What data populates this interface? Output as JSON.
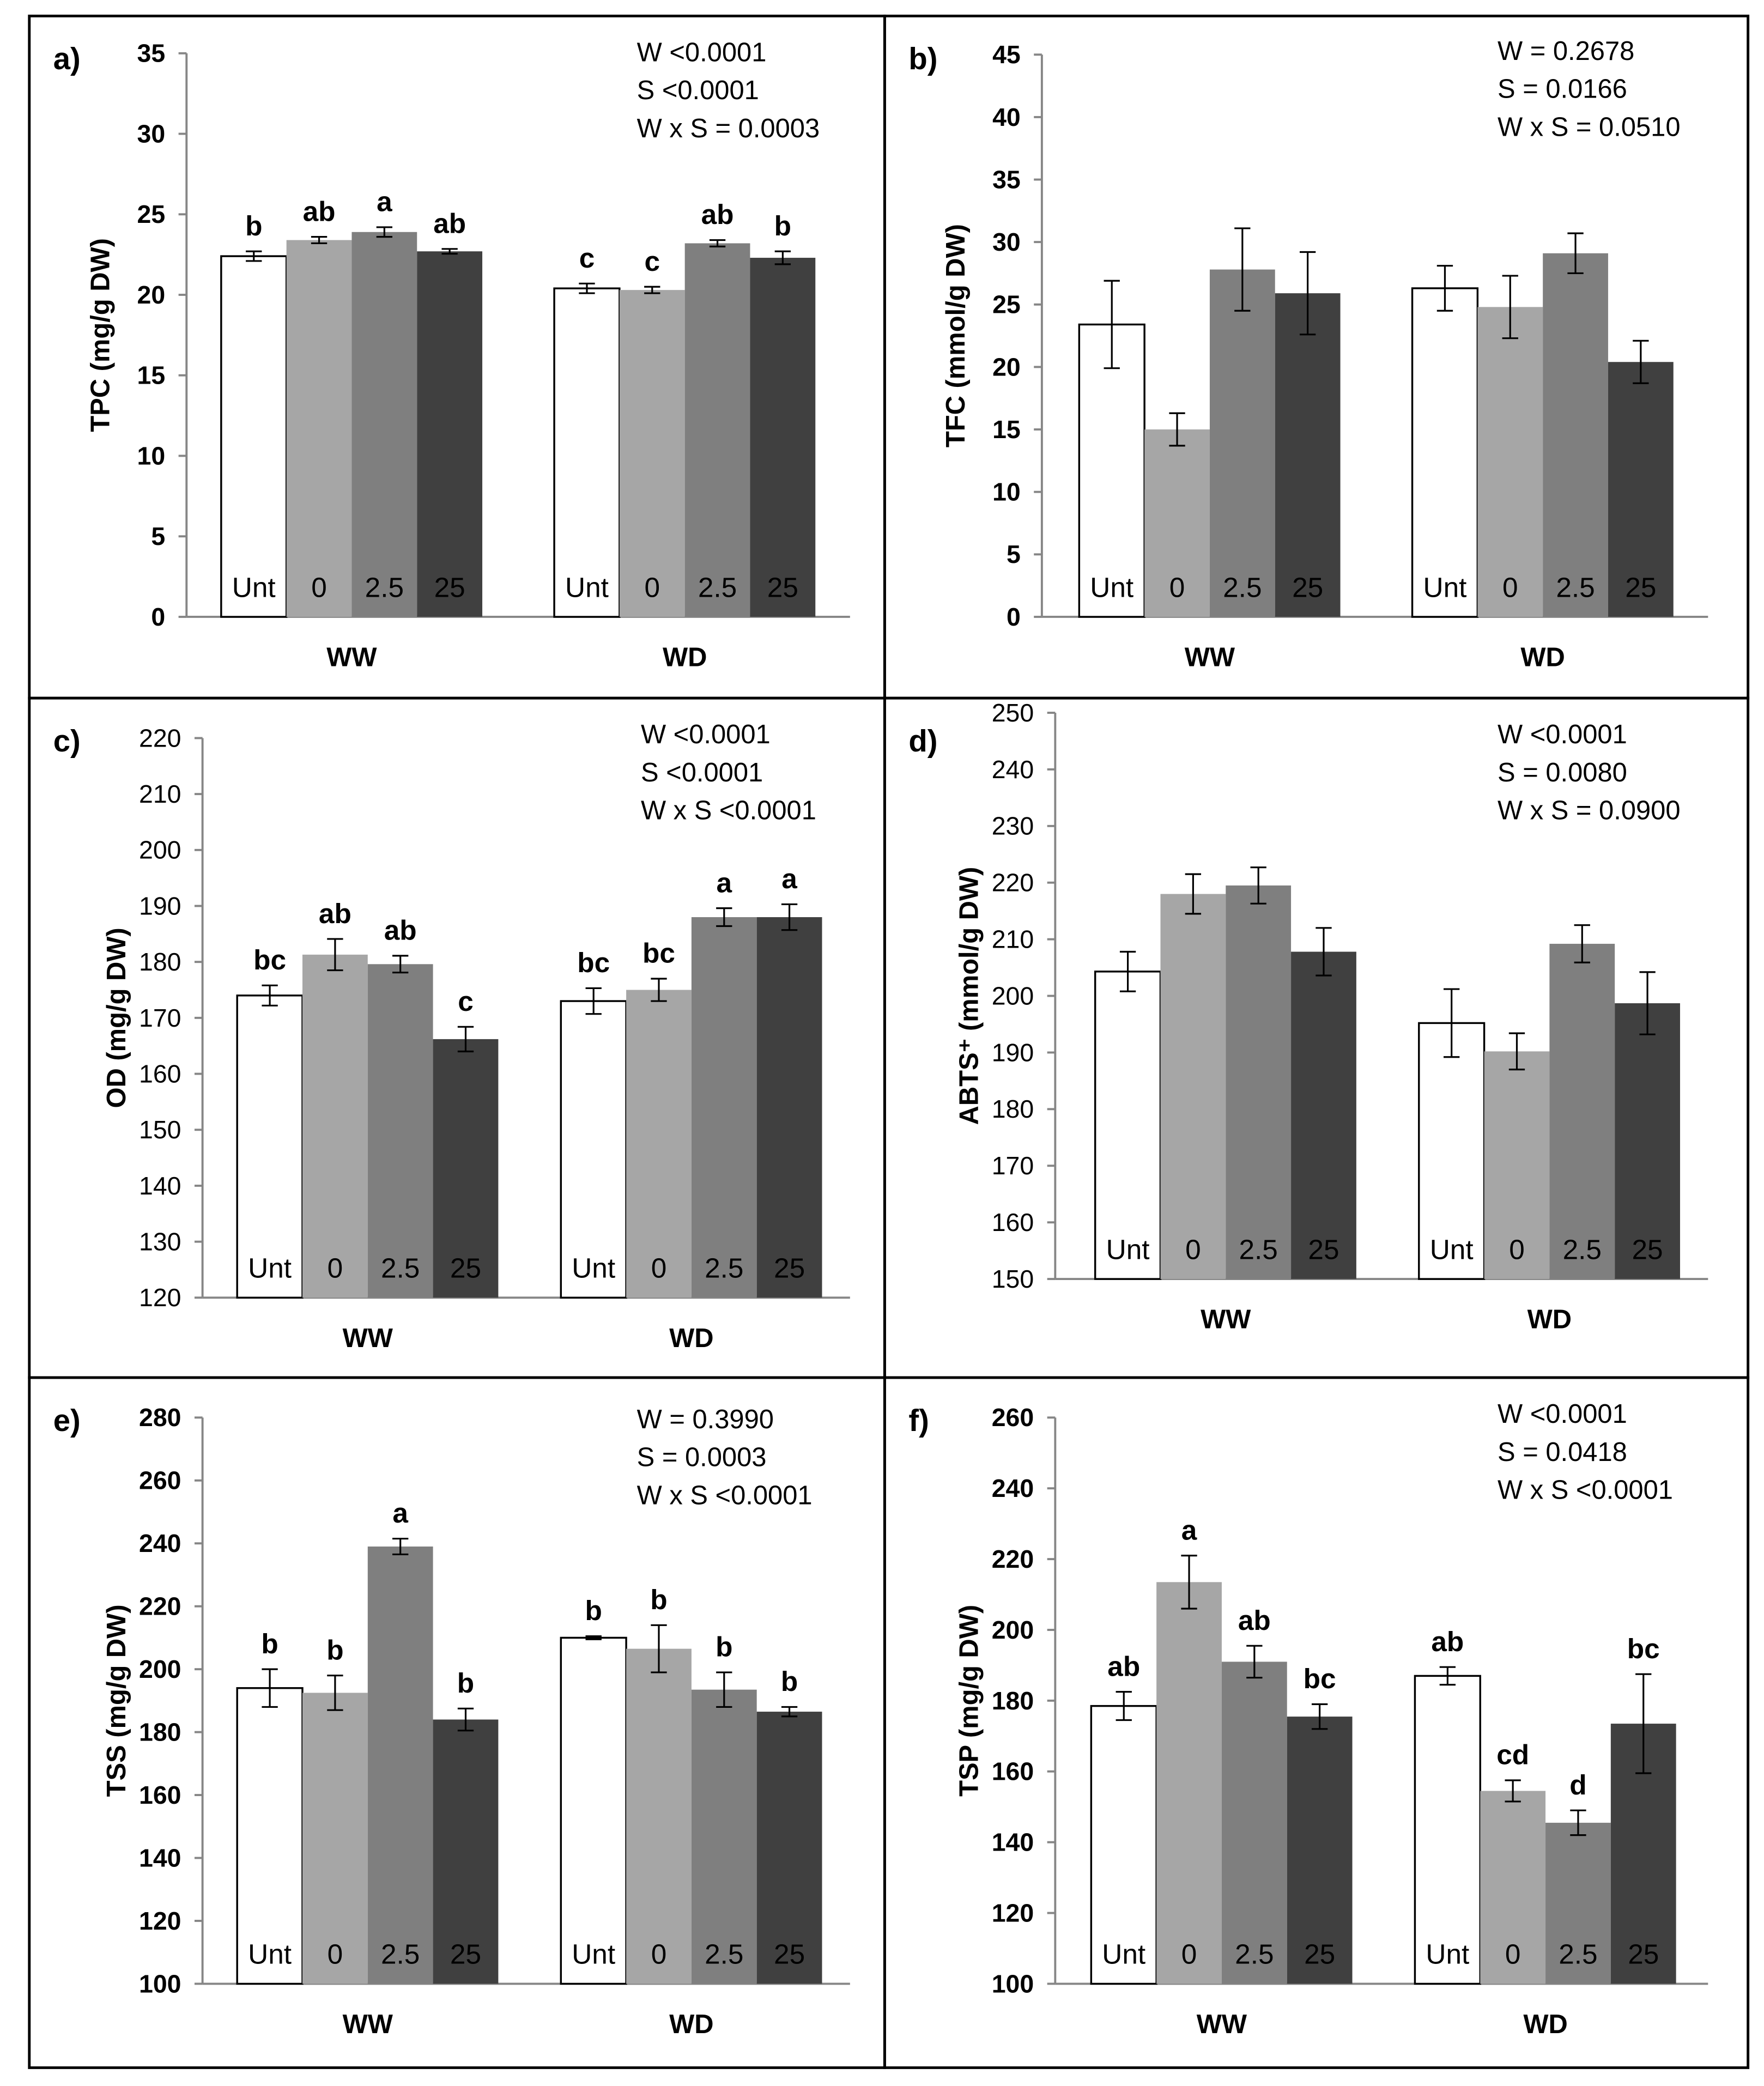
{
  "figure": {
    "groups": [
      "WW",
      "WD"
    ],
    "treatments": [
      "Unt",
      "0",
      "2.5",
      "25"
    ],
    "treatment_colors": [
      "#ffffff",
      "#a6a6a6",
      "#7f7f7f",
      "#404040"
    ]
  },
  "chart_data": [
    {
      "type": "bar",
      "panel_label": "a)",
      "ylabel": "TPC (mg/g DW)",
      "ylim": [
        0,
        35
      ],
      "yticks": [
        0,
        5,
        10,
        15,
        20,
        25,
        30,
        35
      ],
      "ytick_bold": true,
      "categories": [
        "WW",
        "WD"
      ],
      "stats": [
        "W <0.0001",
        "S <0.0001",
        "W x S = 0.0003"
      ],
      "series": [
        {
          "name": "Unt",
          "values": [
            22.4,
            20.4
          ],
          "errors": [
            0.3,
            0.3
          ],
          "letters": [
            "b",
            "c"
          ]
        },
        {
          "name": "0",
          "values": [
            23.4,
            20.3
          ],
          "errors": [
            0.2,
            0.2
          ],
          "letters": [
            "ab",
            "c"
          ]
        },
        {
          "name": "2.5",
          "values": [
            23.9,
            23.2
          ],
          "errors": [
            0.3,
            0.2
          ],
          "letters": [
            "a",
            "ab"
          ]
        },
        {
          "name": "25",
          "values": [
            22.7,
            22.3
          ],
          "errors": [
            0.15,
            0.4
          ],
          "letters": [
            "ab",
            "b"
          ]
        }
      ]
    },
    {
      "type": "bar",
      "panel_label": "b)",
      "ylabel": "TFC (mmol/g DW)",
      "ylim": [
        0,
        45
      ],
      "yticks": [
        0,
        5,
        10,
        15,
        20,
        25,
        30,
        35,
        40,
        45
      ],
      "ytick_bold": true,
      "categories": [
        "WW",
        "WD"
      ],
      "stats": [
        "W = 0.2678",
        "S = 0.0166",
        "W x S = 0.0510"
      ],
      "series": [
        {
          "name": "Unt",
          "values": [
            23.4,
            26.3
          ],
          "errors": [
            3.5,
            1.8
          ],
          "letters": [
            "",
            ""
          ]
        },
        {
          "name": "0",
          "values": [
            15.0,
            24.8
          ],
          "errors": [
            1.3,
            2.5
          ],
          "letters": [
            "",
            ""
          ]
        },
        {
          "name": "2.5",
          "values": [
            27.8,
            29.1
          ],
          "errors": [
            3.3,
            1.6
          ],
          "letters": [
            "",
            ""
          ]
        },
        {
          "name": "25",
          "values": [
            25.9,
            20.4
          ],
          "errors": [
            3.3,
            1.7
          ],
          "letters": [
            "",
            ""
          ]
        }
      ]
    },
    {
      "type": "bar",
      "panel_label": "c)",
      "ylabel": "OD (mg/g DW)",
      "ylim": [
        120,
        220
      ],
      "yticks": [
        120,
        130,
        140,
        150,
        160,
        170,
        180,
        190,
        200,
        210,
        220
      ],
      "ytick_bold": false,
      "categories": [
        "WW",
        "WD"
      ],
      "stats": [
        "W <0.0001",
        "S <0.0001",
        "W x S <0.0001"
      ],
      "series": [
        {
          "name": "Unt",
          "values": [
            174,
            173
          ],
          "errors": [
            1.8,
            2.3
          ],
          "letters": [
            "bc",
            "bc"
          ]
        },
        {
          "name": "0",
          "values": [
            181.3,
            175
          ],
          "errors": [
            2.8,
            2.0
          ],
          "letters": [
            "ab",
            "bc"
          ]
        },
        {
          "name": "2.5",
          "values": [
            179.6,
            188
          ],
          "errors": [
            1.5,
            1.6
          ],
          "letters": [
            "ab",
            "a"
          ]
        },
        {
          "name": "25",
          "values": [
            166.2,
            188
          ],
          "errors": [
            2.2,
            2.3
          ],
          "letters": [
            "c",
            "a"
          ]
        }
      ]
    },
    {
      "type": "bar",
      "panel_label": "d)",
      "ylabel": "ABTS⁺ (mmol/g DW)",
      "ylim": [
        150,
        250
      ],
      "yticks": [
        150,
        160,
        170,
        180,
        190,
        200,
        210,
        220,
        230,
        240,
        250
      ],
      "ytick_bold": false,
      "categories": [
        "WW",
        "WD"
      ],
      "stats": [
        "W <0.0001",
        "S = 0.0080",
        "W x S = 0.0900"
      ],
      "series": [
        {
          "name": "Unt",
          "values": [
            204.3,
            195.2
          ],
          "errors": [
            3.5,
            6.0
          ],
          "letters": [
            "",
            ""
          ]
        },
        {
          "name": "0",
          "values": [
            218,
            190.2
          ],
          "errors": [
            3.5,
            3.2
          ],
          "letters": [
            "",
            ""
          ]
        },
        {
          "name": "2.5",
          "values": [
            219.5,
            209.2
          ],
          "errors": [
            3.2,
            3.3
          ],
          "letters": [
            "",
            ""
          ]
        },
        {
          "name": "25",
          "values": [
            207.8,
            198.7
          ],
          "errors": [
            4.2,
            5.5
          ],
          "letters": [
            "",
            ""
          ]
        }
      ]
    },
    {
      "type": "bar",
      "panel_label": "e)",
      "ylabel": "TSS (mg/g DW)",
      "ylim": [
        100,
        280
      ],
      "yticks": [
        100,
        120,
        140,
        160,
        180,
        200,
        220,
        240,
        260,
        280
      ],
      "ytick_bold": true,
      "categories": [
        "WW",
        "WD"
      ],
      "stats": [
        "W = 0.3990",
        "S = 0.0003",
        "W x S <0.0001"
      ],
      "series": [
        {
          "name": "Unt",
          "values": [
            194,
            210
          ],
          "errors": [
            6.0,
            0.5
          ],
          "letters": [
            "b",
            "b"
          ]
        },
        {
          "name": "0",
          "values": [
            192.5,
            206.5
          ],
          "errors": [
            5.5,
            7.5
          ],
          "letters": [
            "b",
            "b"
          ]
        },
        {
          "name": "2.5",
          "values": [
            239,
            193.5
          ],
          "errors": [
            2.5,
            5.5
          ],
          "letters": [
            "a",
            "b"
          ]
        },
        {
          "name": "25",
          "values": [
            184,
            186.5
          ],
          "errors": [
            3.5,
            1.5
          ],
          "letters": [
            "b",
            "b"
          ]
        }
      ]
    },
    {
      "type": "bar",
      "panel_label": "f)",
      "ylabel": "TSP (mg/g DW)",
      "ylim": [
        100,
        260
      ],
      "yticks": [
        100,
        120,
        140,
        160,
        180,
        200,
        220,
        240,
        260
      ],
      "ytick_bold": true,
      "categories": [
        "WW",
        "WD"
      ],
      "stats": [
        "W <0.0001",
        "S = 0.0418",
        "W x S <0.0001"
      ],
      "series": [
        {
          "name": "Unt",
          "values": [
            178.5,
            187
          ],
          "errors": [
            4.0,
            2.5
          ],
          "letters": [
            "ab",
            "ab"
          ]
        },
        {
          "name": "0",
          "values": [
            213.5,
            154.5
          ],
          "errors": [
            7.5,
            3.0
          ],
          "letters": [
            "a",
            "cd"
          ]
        },
        {
          "name": "2.5",
          "values": [
            191,
            145.5
          ],
          "errors": [
            4.5,
            3.5
          ],
          "letters": [
            "ab",
            "d"
          ]
        },
        {
          "name": "25",
          "values": [
            175.5,
            173.5
          ],
          "errors": [
            3.5,
            14.0
          ],
          "letters": [
            "bc",
            "bc"
          ]
        }
      ]
    }
  ]
}
